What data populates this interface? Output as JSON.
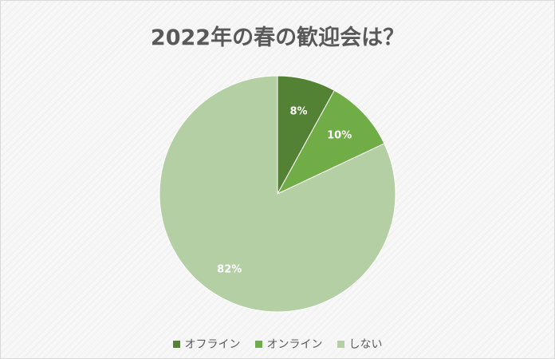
{
  "chart_data": {
    "type": "pie",
    "title": "2022年の春の歓迎会は？",
    "categories": [
      "オフライン",
      "オンライン",
      "しない"
    ],
    "values": [
      8,
      10,
      82
    ],
    "data_labels": [
      "8%",
      "10%",
      "82%"
    ],
    "colors": [
      "#548235",
      "#70ad47",
      "#b4cfa4"
    ],
    "legend": "bottom"
  }
}
